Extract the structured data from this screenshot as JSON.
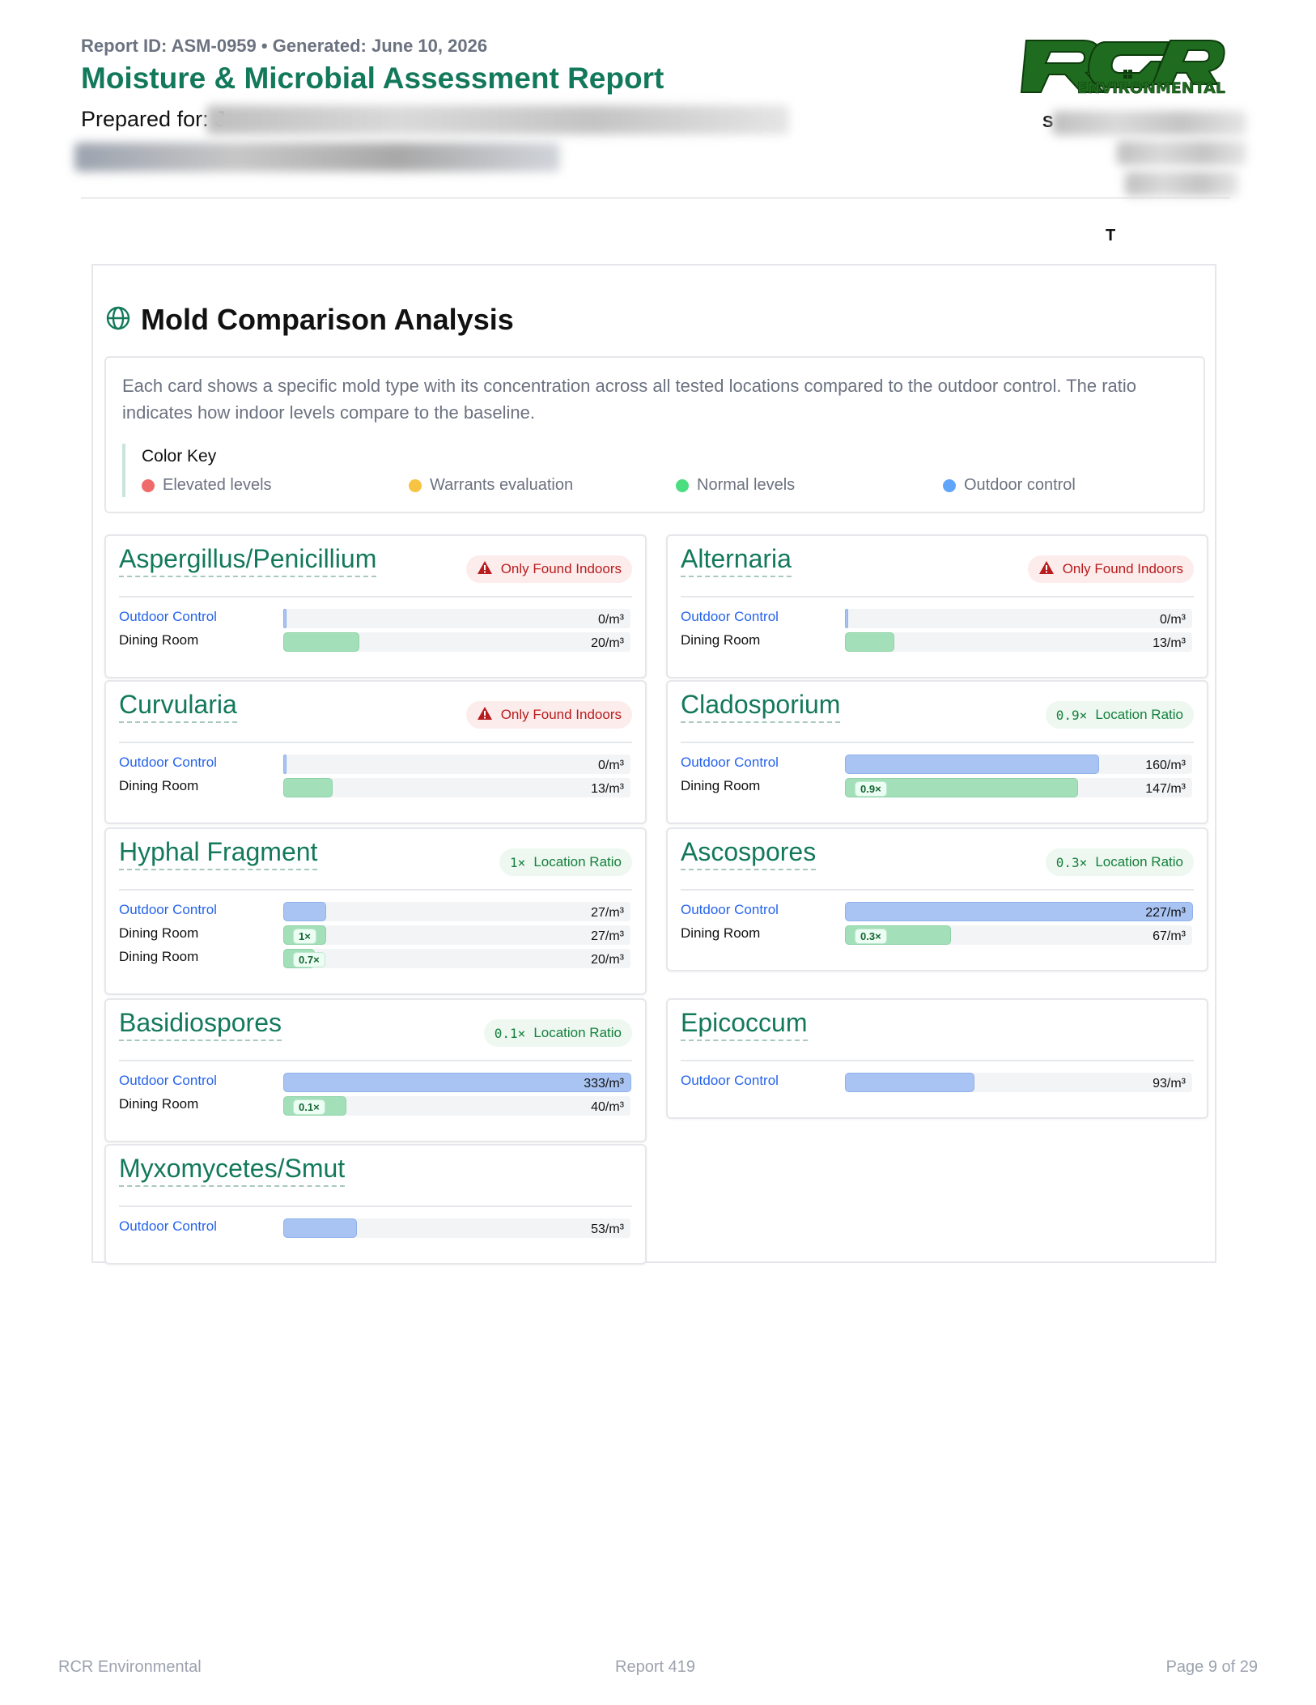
{
  "header": {
    "report_id": "Report ID: ASM-0959 • Generated: June 10, 2026",
    "title": "Moisture & Microbial Assessment Report",
    "prepared_for_label": "Prepared for: J",
    "contact_s": "S",
    "contact_t": "T"
  },
  "logo": {
    "letters": "RCR",
    "sub": "ENVIRONMENTAL",
    "color": "#1f6b1f"
  },
  "section": {
    "title": "Mold Comparison Analysis",
    "icon": "globe-icon",
    "intro": "Each card shows a specific mold type with its concentration across all tested locations compared to the outdoor control. The ratio indicates how indoor levels compare to the baseline.",
    "key_title": "Color Key",
    "key": [
      {
        "label": "Elevated levels",
        "color": "#ef6b6b"
      },
      {
        "label": "Warrants evaluation",
        "color": "#f6c343"
      },
      {
        "label": "Normal levels",
        "color": "#4ade80"
      },
      {
        "label": "Outdoor control",
        "color": "#60a5fa"
      }
    ]
  },
  "cards": [
    {
      "name": "Aspergillus/Penicillium",
      "badge_type": "indoor",
      "badge_label": "Only Found Indoors",
      "badge_ratio": "",
      "rows": [
        {
          "label": "Outdoor Control",
          "type": "outdoor",
          "value": 0,
          "value_text": "0/m³",
          "mult": ""
        },
        {
          "label": "Dining Room",
          "type": "indoor",
          "value": 20,
          "value_text": "20/m³",
          "mult": ""
        }
      ]
    },
    {
      "name": "Alternaria",
      "badge_type": "indoor",
      "badge_label": "Only Found Indoors",
      "badge_ratio": "",
      "rows": [
        {
          "label": "Outdoor Control",
          "type": "outdoor",
          "value": 0,
          "value_text": "0/m³",
          "mult": ""
        },
        {
          "label": "Dining Room",
          "type": "indoor",
          "value": 13,
          "value_text": "13/m³",
          "mult": ""
        }
      ]
    },
    {
      "name": "Curvularia",
      "badge_type": "indoor",
      "badge_label": "Only Found Indoors",
      "badge_ratio": "",
      "rows": [
        {
          "label": "Outdoor Control",
          "type": "outdoor",
          "value": 0,
          "value_text": "0/m³",
          "mult": ""
        },
        {
          "label": "Dining Room",
          "type": "indoor",
          "value": 13,
          "value_text": "13/m³",
          "mult": ""
        }
      ]
    },
    {
      "name": "Cladosporium",
      "badge_type": "ratio",
      "badge_label": "Location Ratio",
      "badge_ratio": "0.9×",
      "rows": [
        {
          "label": "Outdoor Control",
          "type": "outdoor",
          "value": 160,
          "value_text": "160/m³",
          "mult": ""
        },
        {
          "label": "Dining Room",
          "type": "indoor",
          "value": 147,
          "value_text": "147/m³",
          "mult": "0.9×"
        }
      ]
    },
    {
      "name": "Hyphal Fragment",
      "badge_type": "ratio",
      "badge_label": "Location Ratio",
      "badge_ratio": "1×",
      "rows": [
        {
          "label": "Outdoor Control",
          "type": "outdoor",
          "value": 27,
          "value_text": "27/m³",
          "mult": ""
        },
        {
          "label": "Dining Room",
          "type": "indoor",
          "value": 27,
          "value_text": "27/m³",
          "mult": "1×"
        },
        {
          "label": "Dining Room",
          "type": "indoor",
          "value": 20,
          "value_text": "20/m³",
          "mult": "0.7×"
        }
      ]
    },
    {
      "name": "Ascospores",
      "badge_type": "ratio",
      "badge_label": "Location Ratio",
      "badge_ratio": "0.3×",
      "rows": [
        {
          "label": "Outdoor Control",
          "type": "outdoor",
          "value": 227,
          "value_text": "227/m³",
          "mult": ""
        },
        {
          "label": "Dining Room",
          "type": "indoor",
          "value": 67,
          "value_text": "67/m³",
          "mult": "0.3×"
        }
      ]
    },
    {
      "name": "Basidiospores",
      "badge_type": "ratio",
      "badge_label": "Location Ratio",
      "badge_ratio": "0.1×",
      "rows": [
        {
          "label": "Outdoor Control",
          "type": "outdoor",
          "value": 333,
          "value_text": "333/m³",
          "mult": ""
        },
        {
          "label": "Dining Room",
          "type": "indoor",
          "value": 40,
          "value_text": "40/m³",
          "mult": "0.1×"
        }
      ]
    },
    {
      "name": "Epicoccum",
      "badge_type": "none",
      "badge_label": "",
      "badge_ratio": "",
      "rows": [
        {
          "label": "Outdoor Control",
          "type": "outdoor",
          "value": 93,
          "value_text": "93/m³",
          "mult": ""
        }
      ]
    },
    {
      "name": "Myxomycetes/Smut",
      "badge_type": "none",
      "badge_label": "",
      "badge_ratio": "",
      "rows": [
        {
          "label": "Outdoor Control",
          "type": "outdoor",
          "value": 53,
          "value_text": "53/m³",
          "mult": ""
        }
      ]
    }
  ],
  "footer": {
    "left": "RCR Environmental",
    "center": "Report 419",
    "right": "Page 9 of 29"
  }
}
